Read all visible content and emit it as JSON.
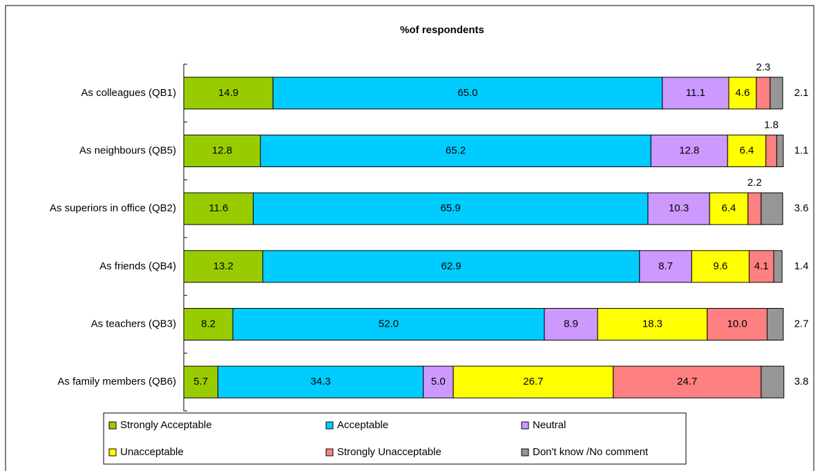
{
  "chart_data": {
    "type": "stacked_bar_horizontal",
    "title": "%of respondents",
    "categories": [
      "As colleagues (QB1)",
      "As neighbours (QB5)",
      "As superiors in office (QB2)",
      "As friends (QB4)",
      "As teachers (QB3)",
      "As family members (QB6)"
    ],
    "xlim": [
      0,
      100
    ],
    "series": [
      {
        "name": "Strongly Acceptable",
        "color": "#99cc00",
        "values": [
          14.9,
          12.8,
          11.6,
          13.2,
          8.2,
          5.7
        ]
      },
      {
        "name": "Acceptable",
        "color": "#00ccff",
        "values": [
          65,
          65.2,
          65.9,
          62.9,
          52,
          34.3
        ],
        "value_labels": [
          "65.0",
          "65.2",
          "65.9",
          "62.9",
          "52.0",
          "34.3"
        ]
      },
      {
        "name": "Neutral",
        "color": "#cc99ff",
        "values": [
          11.1,
          12.8,
          10.3,
          8.7,
          8.9,
          5
        ],
        "value_labels": [
          "11.1",
          "12.8",
          "10.3",
          "8.7",
          "8.9",
          "5.0"
        ]
      },
      {
        "name": "Unacceptable",
        "color": "#ffff00",
        "values": [
          4.6,
          6.4,
          6.4,
          9.6,
          18.3,
          26.7
        ]
      },
      {
        "name": "Strongly Unacceptable",
        "color": "#ff8080",
        "values": [
          2.3,
          1.8,
          2.2,
          4.1,
          10,
          24.7
        ],
        "value_labels": [
          "2.3",
          "1.8",
          "2.2",
          "4.1",
          "10.0",
          "24.7"
        ]
      },
      {
        "name": "Don't know /No comment",
        "color": "#969696",
        "values": [
          2.1,
          1.1,
          3.6,
          1.4,
          2.7,
          3.8
        ]
      }
    ],
    "legend": "bottom"
  }
}
